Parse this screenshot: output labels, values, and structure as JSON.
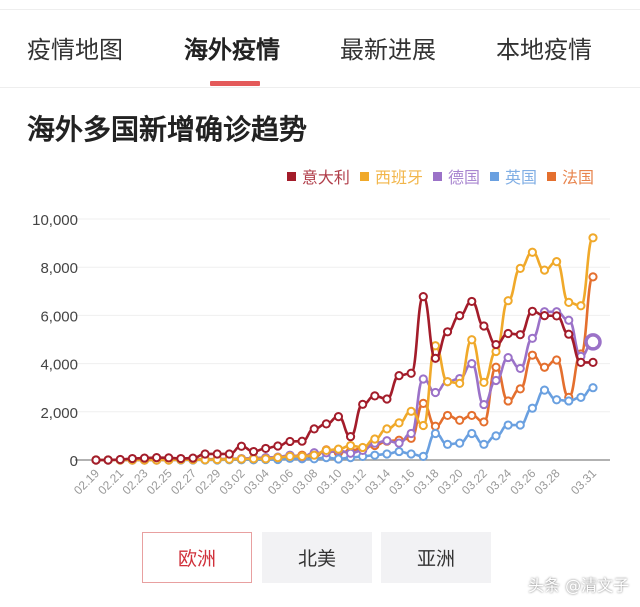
{
  "tabs": [
    {
      "label": "疫情地图",
      "active": false
    },
    {
      "label": "海外疫情",
      "active": true
    },
    {
      "label": "最新进展",
      "active": false
    },
    {
      "label": "本地疫情",
      "active": false
    }
  ],
  "accent_color": "#e45a5a",
  "section_title": "海外多国新增确诊趋势",
  "region_buttons": [
    {
      "label": "欧洲",
      "active": true
    },
    {
      "label": "北美",
      "active": false
    },
    {
      "label": "亚洲",
      "active": false
    }
  ],
  "watermark": "头条 @清文子",
  "chart_data": {
    "type": "line",
    "title": "",
    "xlabel": "",
    "ylabel": "",
    "ylim": [
      0,
      10000
    ],
    "y_ticks": [
      "0",
      "2,000",
      "4,000",
      "6,000",
      "8,000",
      "10,000"
    ],
    "grid": true,
    "legend_placement": "top-right",
    "x": [
      "02.19",
      "02.20",
      "02.21",
      "02.22",
      "02.23",
      "02.24",
      "02.25",
      "02.26",
      "02.27",
      "02.28",
      "02.29",
      "03.01",
      "03.02",
      "03.03",
      "03.04",
      "03.05",
      "03.06",
      "03.07",
      "03.08",
      "03.09",
      "03.10",
      "03.11",
      "03.12",
      "03.13",
      "03.14",
      "03.15",
      "03.16",
      "03.17",
      "03.18",
      "03.19",
      "03.20",
      "03.21",
      "03.22",
      "03.23",
      "03.24",
      "03.25",
      "03.26",
      "03.27",
      "03.28",
      "03.29",
      "03.30",
      "03.31"
    ],
    "x_tick_labels": [
      "02.19",
      "02.21",
      "02.23",
      "02.25",
      "02.27",
      "02.29",
      "03.02",
      "03.04",
      "03.06",
      "03.08",
      "03.10",
      "03.12",
      "03.14",
      "03.16",
      "03.18",
      "03.20",
      "03.22",
      "03.24",
      "03.26",
      "03.28",
      "03.31"
    ],
    "series": [
      {
        "name": "意大利",
        "color": "#a31c2a",
        "values": [
          0,
          0,
          20,
          60,
          80,
          100,
          90,
          60,
          80,
          250,
          250,
          250,
          570,
          350,
          480,
          580,
          770,
          780,
          1290,
          1500,
          1800,
          970,
          2310,
          2660,
          2530,
          3500,
          3600,
          6780,
          4220,
          5320,
          5990,
          6580,
          5560,
          4790,
          5250,
          5200,
          6170,
          5990,
          5980,
          5220,
          4050,
          4050
        ]
      },
      {
        "name": "西班牙",
        "color": "#f0a92a",
        "values": [
          0,
          0,
          0,
          0,
          0,
          0,
          0,
          10,
          10,
          10,
          20,
          30,
          40,
          50,
          50,
          100,
          150,
          150,
          200,
          400,
          450,
          600,
          520,
          870,
          1290,
          1540,
          2020,
          1430,
          4740,
          3250,
          3180,
          4990,
          3220,
          4500,
          6610,
          7950,
          8620,
          7880,
          8230,
          6540,
          6400,
          9220
        ]
      },
      {
        "name": "德国",
        "color": "#9b72c8",
        "values": [
          0,
          0,
          0,
          0,
          0,
          0,
          10,
          20,
          20,
          20,
          30,
          50,
          60,
          80,
          100,
          120,
          200,
          130,
          300,
          300,
          400,
          280,
          400,
          700,
          800,
          700,
          1100,
          3360,
          2800,
          3250,
          3380,
          4000,
          2300,
          3300,
          4250,
          3800,
          5050,
          6150,
          6150,
          5800,
          4300,
          4900
        ]
      },
      {
        "name": "英国",
        "color": "#6aa0e0",
        "values": [
          0,
          0,
          0,
          0,
          0,
          0,
          0,
          0,
          0,
          0,
          0,
          10,
          10,
          10,
          20,
          20,
          70,
          50,
          50,
          100,
          40,
          100,
          150,
          200,
          250,
          350,
          250,
          150,
          1100,
          650,
          700,
          1100,
          650,
          1000,
          1450,
          1450,
          2150,
          2900,
          2500,
          2450,
          2600,
          3000
        ]
      },
      {
        "name": "法国",
        "color": "#e46f2e",
        "values": [
          0,
          0,
          0,
          0,
          0,
          0,
          0,
          10,
          20,
          30,
          40,
          40,
          30,
          20,
          40,
          100,
          140,
          200,
          120,
          420,
          300,
          380,
          500,
          600,
          780,
          820,
          900,
          2350,
          1400,
          1850,
          1650,
          1850,
          1580,
          3850,
          2450,
          2950,
          4350,
          3850,
          4150,
          2600,
          4400,
          7600
        ]
      }
    ]
  }
}
